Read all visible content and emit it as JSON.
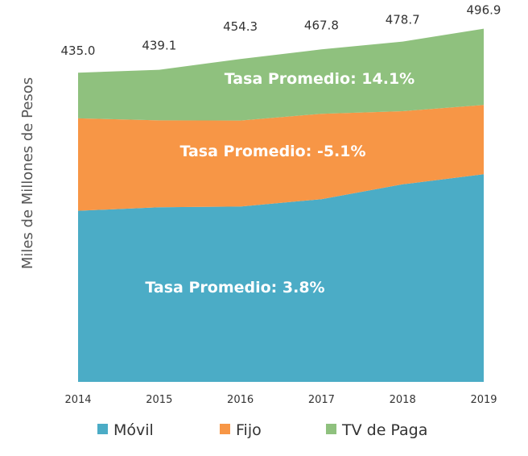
{
  "chart_data": {
    "type": "area",
    "stacked": true,
    "title": "",
    "xlabel": "",
    "ylabel": "Miles de Millones de Pesos",
    "ylim": [
      0,
      500
    ],
    "grid": false,
    "legend_position": "bottom",
    "categories": [
      "2014",
      "2015",
      "2016",
      "2017",
      "2018",
      "2019"
    ],
    "series": [
      {
        "name": "Móvil",
        "color": "#4BACC6",
        "values": [
          240.7,
          245.6,
          246.6,
          257.0,
          277.9,
          292.1
        ]
      },
      {
        "name": "Fijo",
        "color": "#F79646",
        "values": [
          130.0,
          122.3,
          121.1,
          120.2,
          102.9,
          97.4
        ]
      },
      {
        "name": "TV de Paga",
        "color": "#8FC17E",
        "values": [
          64.3,
          71.2,
          86.6,
          90.6,
          97.9,
          107.4
        ]
      }
    ],
    "totals": [
      "435.0",
      "439.1",
      "454.3",
      "467.8",
      "478.7",
      "496.9"
    ],
    "annotations": [
      {
        "series": "TV de Paga",
        "text": "Tasa Promedio: 14.1%"
      },
      {
        "series": "Fijo",
        "text": "Tasa Promedio: -5.1%"
      },
      {
        "series": "Móvil",
        "text": "Tasa Promedio: 3.8%"
      }
    ]
  }
}
